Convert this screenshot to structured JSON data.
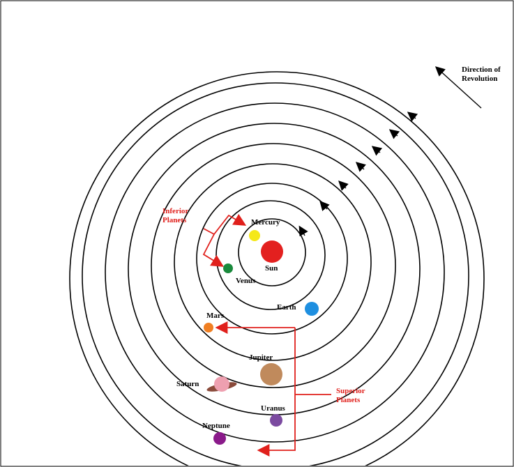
{
  "diagram": {
    "direction_label": [
      "Direction of",
      "Revolution"
    ],
    "inferior_label": [
      "Inferior",
      "Planets"
    ],
    "superior_label": [
      "Superior",
      "Planets"
    ],
    "nodes": [
      {
        "label": "Sun"
      },
      {
        "label": "Mercury"
      },
      {
        "label": "Venus"
      },
      {
        "label": "Earth"
      },
      {
        "label": "Mars"
      },
      {
        "label": "Jupiter"
      },
      {
        "label": "Saturn"
      },
      {
        "label": "Uranus"
      },
      {
        "label": "Neptune"
      }
    ]
  }
}
